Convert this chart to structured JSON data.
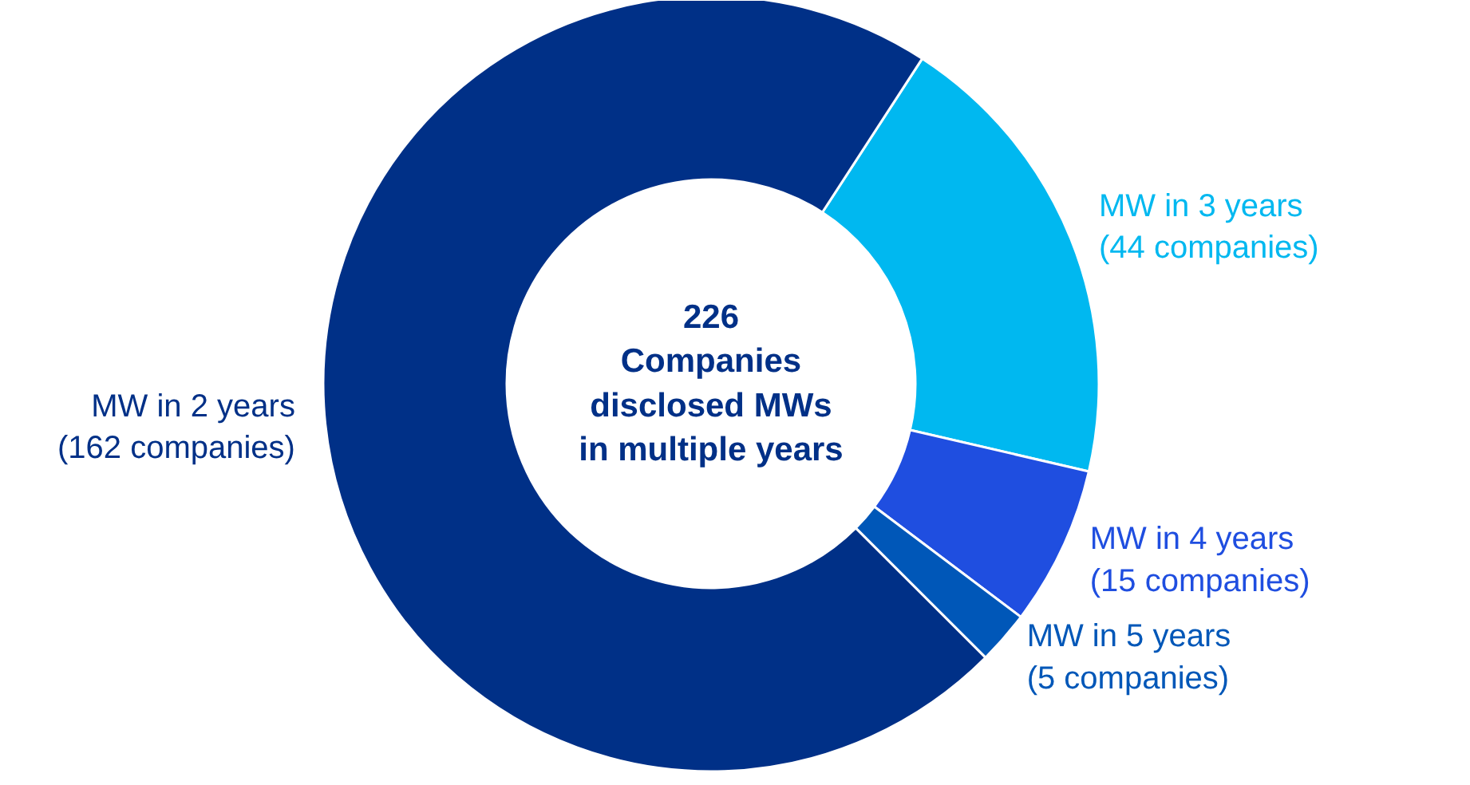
{
  "chart_data": {
    "type": "donut",
    "categories": [
      "MW in 3 years\n(44 companies)",
      "MW in 4 years\n(15 companies)",
      "MW in 5 years\n(5 companies)",
      "MW in 2 years\n(162 companies)"
    ],
    "values": [
      44,
      15,
      5,
      162
    ],
    "colors": [
      "#00b8f0",
      "#1f4ee0",
      "#0057b8",
      "#003087"
    ],
    "annotations": [
      "226\nCompanies\ndisclosed MWs\nin multiple years"
    ]
  }
}
